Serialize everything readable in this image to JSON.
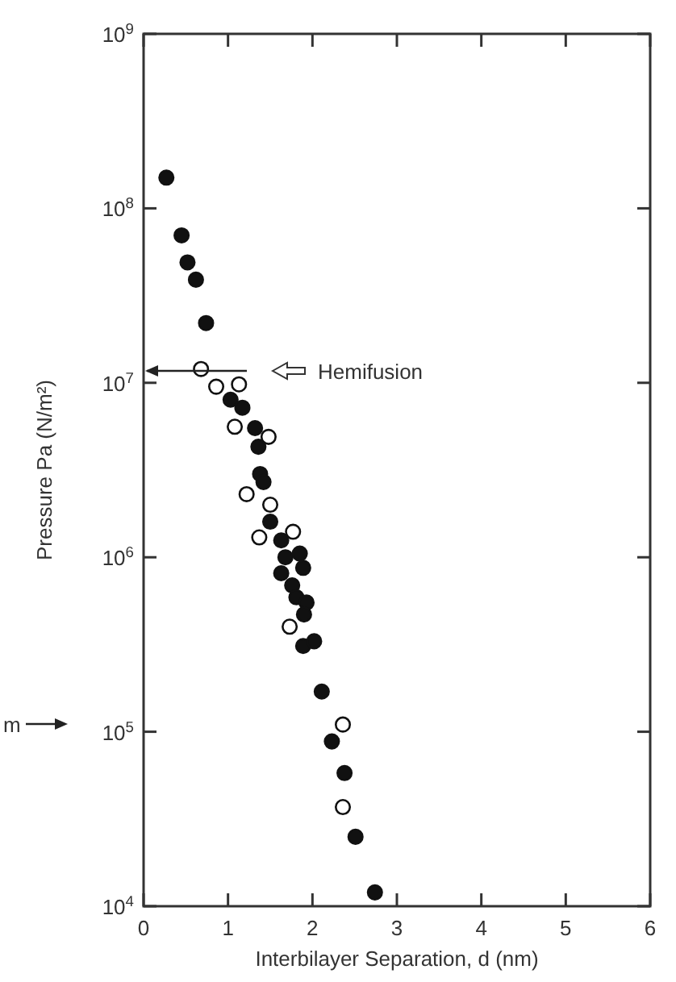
{
  "chart_data": {
    "type": "scatter",
    "xlabel": "Interbilayer Separation, d (nm)",
    "ylabel": "Pressure  Pa (N/m²)",
    "log": "y",
    "marker": "circle",
    "grid": false,
    "xlim": [
      0,
      6
    ],
    "xticks": [
      0,
      1,
      2,
      3,
      4,
      5,
      6
    ],
    "ylim": [
      10000,
      1000000000
    ],
    "yticks": [
      {
        "value": 10000,
        "label": "10$^{4}$"
      },
      {
        "value": 100000,
        "label": "10$^{5}$"
      },
      {
        "value": 1000000,
        "label": "10$^{6}$"
      },
      {
        "value": 10000000,
        "label": "10$^{7}$"
      },
      {
        "value": 100000000,
        "label": "10$^{8}$"
      },
      {
        "value": 1000000000,
        "label": "10$^{9}$"
      }
    ],
    "series": [
      {
        "color": "#111111",
        "x": [
          0.27,
          0.45,
          0.52,
          0.62,
          0.74,
          1.03,
          1.17,
          1.32,
          1.36,
          1.38,
          1.42,
          1.5,
          1.63,
          1.68,
          1.85,
          1.89,
          1.63,
          1.76,
          1.81,
          1.93,
          1.9,
          1.89,
          2.02,
          2.11,
          2.23,
          2.38,
          2.51,
          2.74
        ],
        "values": [
          150000000,
          70000000,
          49000000,
          39000000,
          22000000,
          8000000,
          7200000,
          5500000,
          4300000,
          3000000,
          2700000,
          1600000,
          1250000,
          1000000,
          1050000,
          870000,
          810000,
          690000,
          590000,
          550000,
          470000,
          310000,
          330000,
          170000,
          88000,
          58000,
          25000,
          12000
        ]
      },
      {
        "color": "#ffffff",
        "x": [
          0.68,
          0.86,
          1.13,
          1.08,
          1.48,
          1.22,
          1.5,
          1.37,
          1.77,
          1.73,
          2.36,
          2.36
        ],
        "values": [
          12000000,
          9500000,
          9800000,
          5600000,
          4900000,
          2300000,
          2000000,
          1300000,
          1400000,
          400000,
          110000,
          37000
        ]
      }
    ],
    "annotations": [
      "Hemifusion",
      "m"
    ]
  }
}
